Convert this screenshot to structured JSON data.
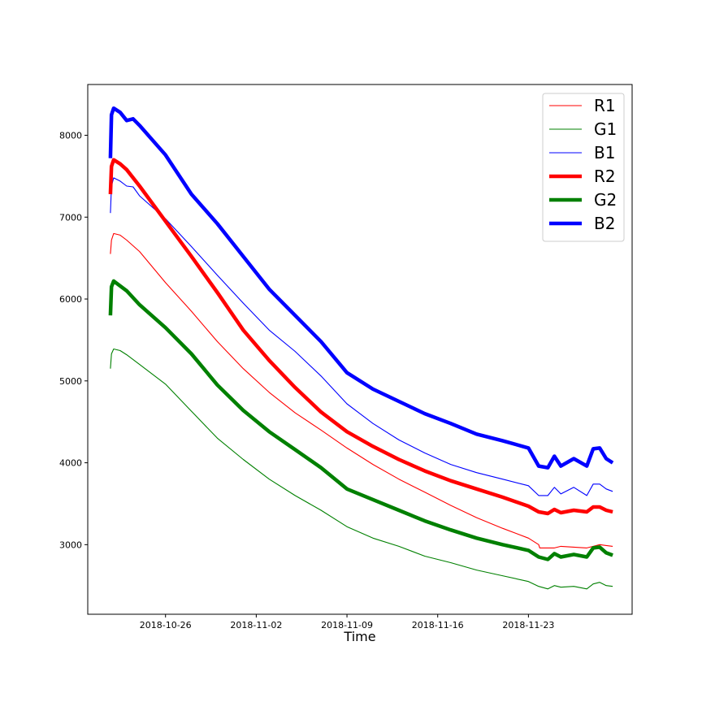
{
  "chart_data": {
    "type": "line",
    "title": "",
    "xlabel": "Time",
    "ylabel": "",
    "xlim": [
      "2018-10-20",
      "2018-12-01"
    ],
    "ylim": [
      2150,
      8620
    ],
    "x_ticks": [
      {
        "date": "2018-10-26",
        "label": "2018-10-26"
      },
      {
        "date": "2018-11-02",
        "label": "2018-11-02"
      },
      {
        "date": "2018-11-09",
        "label": "2018-11-09"
      },
      {
        "date": "2018-11-16",
        "label": "2018-11-16"
      },
      {
        "date": "2018-11-23",
        "label": "2018-11-23"
      }
    ],
    "y_ticks": [
      {
        "value": 3000,
        "label": "3000"
      },
      {
        "value": 4000,
        "label": "4000"
      },
      {
        "value": 5000,
        "label": "5000"
      },
      {
        "value": 6000,
        "label": "6000"
      },
      {
        "value": 7000,
        "label": "7000"
      },
      {
        "value": 8000,
        "label": "8000"
      }
    ],
    "grid": false,
    "legend": {
      "position": "top-right"
    },
    "series": [
      {
        "name": "R1",
        "color": "#ff0000",
        "width": "thin",
        "points": [
          [
            "2018-10-21T18:00",
            6550
          ],
          [
            "2018-10-21T20:00",
            6720
          ],
          [
            "2018-10-22T00:00",
            6800
          ],
          [
            "2018-10-22T12:00",
            6780
          ],
          [
            "2018-10-23T00:00",
            6720
          ],
          [
            "2018-10-24T00:00",
            6580
          ],
          [
            "2018-10-26T00:00",
            6200
          ],
          [
            "2018-10-28T00:00",
            5850
          ],
          [
            "2018-10-30T00:00",
            5480
          ],
          [
            "2018-11-01T00:00",
            5150
          ],
          [
            "2018-11-03T00:00",
            4860
          ],
          [
            "2018-11-05T00:00",
            4610
          ],
          [
            "2018-11-07T00:00",
            4400
          ],
          [
            "2018-11-09T00:00",
            4180
          ],
          [
            "2018-11-11T00:00",
            3980
          ],
          [
            "2018-11-13T00:00",
            3800
          ],
          [
            "2018-11-15T00:00",
            3640
          ],
          [
            "2018-11-17T00:00",
            3480
          ],
          [
            "2018-11-19T00:00",
            3330
          ],
          [
            "2018-11-21T00:00",
            3200
          ],
          [
            "2018-11-23T00:00",
            3080
          ],
          [
            "2018-11-23T19:00",
            3000
          ],
          [
            "2018-11-23T21:00",
            2960
          ],
          [
            "2018-11-25T00:00",
            2960
          ],
          [
            "2018-11-25T12:00",
            2980
          ],
          [
            "2018-11-26T12:00",
            2970
          ],
          [
            "2018-11-27T12:00",
            2960
          ],
          [
            "2018-11-28T00:00",
            2980
          ],
          [
            "2018-11-28T12:00",
            3000
          ],
          [
            "2018-11-29T00:00",
            2990
          ],
          [
            "2018-11-29T12:00",
            2980
          ]
        ]
      },
      {
        "name": "G1",
        "color": "#008000",
        "width": "thin",
        "points": [
          [
            "2018-10-21T18:00",
            5150
          ],
          [
            "2018-10-21T20:00",
            5330
          ],
          [
            "2018-10-22T00:00",
            5390
          ],
          [
            "2018-10-22T12:00",
            5370
          ],
          [
            "2018-10-23T00:00",
            5320
          ],
          [
            "2018-10-24T00:00",
            5200
          ],
          [
            "2018-10-26T00:00",
            4960
          ],
          [
            "2018-10-28T00:00",
            4630
          ],
          [
            "2018-10-30T00:00",
            4300
          ],
          [
            "2018-11-01T00:00",
            4040
          ],
          [
            "2018-11-03T00:00",
            3800
          ],
          [
            "2018-11-05T00:00",
            3600
          ],
          [
            "2018-11-07T00:00",
            3420
          ],
          [
            "2018-11-09T00:00",
            3220
          ],
          [
            "2018-11-11T00:00",
            3080
          ],
          [
            "2018-11-13T00:00",
            2980
          ],
          [
            "2018-11-15T00:00",
            2860
          ],
          [
            "2018-11-17T00:00",
            2780
          ],
          [
            "2018-11-19T00:00",
            2690
          ],
          [
            "2018-11-21T00:00",
            2620
          ],
          [
            "2018-11-23T00:00",
            2550
          ],
          [
            "2018-11-23T19:00",
            2490
          ],
          [
            "2018-11-24T12:00",
            2460
          ],
          [
            "2018-11-25T00:00",
            2500
          ],
          [
            "2018-11-25T12:00",
            2480
          ],
          [
            "2018-11-26T12:00",
            2490
          ],
          [
            "2018-11-27T12:00",
            2460
          ],
          [
            "2018-11-28T00:00",
            2520
          ],
          [
            "2018-11-28T12:00",
            2540
          ],
          [
            "2018-11-29T00:00",
            2500
          ],
          [
            "2018-11-29T12:00",
            2490
          ]
        ]
      },
      {
        "name": "B1",
        "color": "#0000ff",
        "width": "thin",
        "points": [
          [
            "2018-10-21T18:00",
            7050
          ],
          [
            "2018-10-21T20:00",
            7380
          ],
          [
            "2018-10-22T00:00",
            7480
          ],
          [
            "2018-10-22T12:00",
            7440
          ],
          [
            "2018-10-23T00:00",
            7380
          ],
          [
            "2018-10-23T12:00",
            7370
          ],
          [
            "2018-10-24T00:00",
            7260
          ],
          [
            "2018-10-26T00:00",
            6980
          ],
          [
            "2018-10-28T00:00",
            6640
          ],
          [
            "2018-10-30T00:00",
            6290
          ],
          [
            "2018-11-01T00:00",
            5950
          ],
          [
            "2018-11-03T00:00",
            5620
          ],
          [
            "2018-11-05T00:00",
            5360
          ],
          [
            "2018-11-07T00:00",
            5060
          ],
          [
            "2018-11-09T00:00",
            4720
          ],
          [
            "2018-11-11T00:00",
            4480
          ],
          [
            "2018-11-13T00:00",
            4280
          ],
          [
            "2018-11-15T00:00",
            4120
          ],
          [
            "2018-11-17T00:00",
            3980
          ],
          [
            "2018-11-19T00:00",
            3880
          ],
          [
            "2018-11-21T00:00",
            3800
          ],
          [
            "2018-11-23T00:00",
            3720
          ],
          [
            "2018-11-23T19:00",
            3600
          ],
          [
            "2018-11-24T12:00",
            3600
          ],
          [
            "2018-11-25T00:00",
            3700
          ],
          [
            "2018-11-25T12:00",
            3620
          ],
          [
            "2018-11-26T12:00",
            3700
          ],
          [
            "2018-11-27T12:00",
            3600
          ],
          [
            "2018-11-28T00:00",
            3740
          ],
          [
            "2018-11-28T12:00",
            3740
          ],
          [
            "2018-11-29T00:00",
            3680
          ],
          [
            "2018-11-29T12:00",
            3650
          ]
        ]
      },
      {
        "name": "R2",
        "color": "#ff0000",
        "width": "thick",
        "points": [
          [
            "2018-10-21T18:00",
            7280
          ],
          [
            "2018-10-21T20:00",
            7620
          ],
          [
            "2018-10-22T00:00",
            7700
          ],
          [
            "2018-10-22T12:00",
            7650
          ],
          [
            "2018-10-23T00:00",
            7580
          ],
          [
            "2018-10-24T00:00",
            7380
          ],
          [
            "2018-10-26T00:00",
            6950
          ],
          [
            "2018-10-28T00:00",
            6520
          ],
          [
            "2018-10-30T00:00",
            6080
          ],
          [
            "2018-11-01T00:00",
            5620
          ],
          [
            "2018-11-03T00:00",
            5250
          ],
          [
            "2018-11-05T00:00",
            4920
          ],
          [
            "2018-11-07T00:00",
            4620
          ],
          [
            "2018-11-09T00:00",
            4380
          ],
          [
            "2018-11-11T00:00",
            4200
          ],
          [
            "2018-11-13T00:00",
            4040
          ],
          [
            "2018-11-15T00:00",
            3900
          ],
          [
            "2018-11-17T00:00",
            3780
          ],
          [
            "2018-11-19T00:00",
            3680
          ],
          [
            "2018-11-21T00:00",
            3580
          ],
          [
            "2018-11-23T00:00",
            3470
          ],
          [
            "2018-11-23T19:00",
            3400
          ],
          [
            "2018-11-24T12:00",
            3380
          ],
          [
            "2018-11-25T00:00",
            3430
          ],
          [
            "2018-11-25T12:00",
            3390
          ],
          [
            "2018-11-26T12:00",
            3420
          ],
          [
            "2018-11-27T12:00",
            3400
          ],
          [
            "2018-11-28T00:00",
            3460
          ],
          [
            "2018-11-28T12:00",
            3460
          ],
          [
            "2018-11-29T00:00",
            3420
          ],
          [
            "2018-11-29T12:00",
            3400
          ]
        ]
      },
      {
        "name": "G2",
        "color": "#008000",
        "width": "thick",
        "points": [
          [
            "2018-10-21T18:00",
            5800
          ],
          [
            "2018-10-21T20:00",
            6150
          ],
          [
            "2018-10-22T00:00",
            6220
          ],
          [
            "2018-10-22T12:00",
            6160
          ],
          [
            "2018-10-23T00:00",
            6100
          ],
          [
            "2018-10-24T00:00",
            5930
          ],
          [
            "2018-10-26T00:00",
            5650
          ],
          [
            "2018-10-28T00:00",
            5330
          ],
          [
            "2018-10-30T00:00",
            4950
          ],
          [
            "2018-11-01T00:00",
            4640
          ],
          [
            "2018-11-03T00:00",
            4380
          ],
          [
            "2018-11-05T00:00",
            4160
          ],
          [
            "2018-11-07T00:00",
            3940
          ],
          [
            "2018-11-09T00:00",
            3680
          ],
          [
            "2018-11-11T00:00",
            3550
          ],
          [
            "2018-11-13T00:00",
            3420
          ],
          [
            "2018-11-15T00:00",
            3290
          ],
          [
            "2018-11-17T00:00",
            3180
          ],
          [
            "2018-11-19T00:00",
            3080
          ],
          [
            "2018-11-21T00:00",
            3000
          ],
          [
            "2018-11-23T00:00",
            2930
          ],
          [
            "2018-11-23T19:00",
            2850
          ],
          [
            "2018-11-24T12:00",
            2820
          ],
          [
            "2018-11-25T00:00",
            2890
          ],
          [
            "2018-11-25T12:00",
            2850
          ],
          [
            "2018-11-26T12:00",
            2880
          ],
          [
            "2018-11-27T12:00",
            2850
          ],
          [
            "2018-11-28T00:00",
            2960
          ],
          [
            "2018-11-28T12:00",
            2970
          ],
          [
            "2018-11-29T00:00",
            2900
          ],
          [
            "2018-11-29T12:00",
            2870
          ]
        ]
      },
      {
        "name": "B2",
        "color": "#0000ff",
        "width": "thick",
        "points": [
          [
            "2018-10-21T18:00",
            7720
          ],
          [
            "2018-10-21T20:00",
            8250
          ],
          [
            "2018-10-22T00:00",
            8330
          ],
          [
            "2018-10-22T12:00",
            8280
          ],
          [
            "2018-10-23T00:00",
            8180
          ],
          [
            "2018-10-23T12:00",
            8200
          ],
          [
            "2018-10-24T00:00",
            8120
          ],
          [
            "2018-10-26T00:00",
            7760
          ],
          [
            "2018-10-28T00:00",
            7280
          ],
          [
            "2018-10-30T00:00",
            6920
          ],
          [
            "2018-11-01T00:00",
            6520
          ],
          [
            "2018-11-03T00:00",
            6120
          ],
          [
            "2018-11-05T00:00",
            5800
          ],
          [
            "2018-11-07T00:00",
            5480
          ],
          [
            "2018-11-09T00:00",
            5100
          ],
          [
            "2018-11-11T00:00",
            4900
          ],
          [
            "2018-11-13T00:00",
            4750
          ],
          [
            "2018-11-15T00:00",
            4600
          ],
          [
            "2018-11-17T00:00",
            4480
          ],
          [
            "2018-11-19T00:00",
            4350
          ],
          [
            "2018-11-21T00:00",
            4270
          ],
          [
            "2018-11-23T00:00",
            4180
          ],
          [
            "2018-11-23T19:00",
            3960
          ],
          [
            "2018-11-24T12:00",
            3940
          ],
          [
            "2018-11-25T00:00",
            4080
          ],
          [
            "2018-11-25T12:00",
            3960
          ],
          [
            "2018-11-26T12:00",
            4050
          ],
          [
            "2018-11-27T12:00",
            3960
          ],
          [
            "2018-11-28T00:00",
            4170
          ],
          [
            "2018-11-28T12:00",
            4180
          ],
          [
            "2018-11-29T00:00",
            4050
          ],
          [
            "2018-11-29T12:00",
            4000
          ]
        ]
      }
    ]
  }
}
